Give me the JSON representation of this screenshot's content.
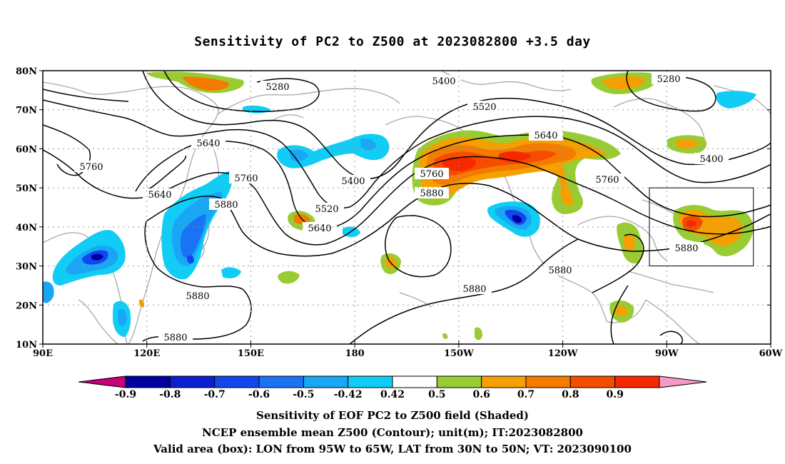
{
  "title": "Sensitivity of PC2 to Z500 at 2023082800 +3.5 day",
  "captions": [
    "Sensitivity of EOF PC2 to Z500 field (Shaded)",
    "NCEP ensemble mean Z500 (Contour); unit(m); IT:2023082800",
    "Valid area (box): LON from 95W to 65W, LAT from 30N to 50N; VT: 2023090100"
  ],
  "axes": {
    "x_ticks": [
      "90E",
      "120E",
      "150E",
      "180",
      "150W",
      "120W",
      "90W",
      "60W"
    ],
    "y_ticks": [
      "80N",
      "70N",
      "60N",
      "50N",
      "40N",
      "30N",
      "20N",
      "10N"
    ],
    "lon_range": [
      90,
      300
    ],
    "lat_range": [
      10,
      80
    ]
  },
  "colorbar": {
    "labels": [
      "-0.9",
      "-0.8",
      "-0.7",
      "-0.6",
      "-0.5",
      "-0.42",
      "0.42",
      "0.5",
      "0.6",
      "0.7",
      "0.8",
      "0.9"
    ],
    "colors": [
      "#c8007c",
      "#0000a0",
      "#0a1fd0",
      "#1246ee",
      "#1a72f5",
      "#19a6f5",
      "#11cdf5",
      "#ffffff",
      "#99cc33",
      "#f5a000",
      "#f57a00",
      "#f54d00",
      "#f52800",
      "#f59ac8"
    ]
  },
  "contour_labels": [
    "5280",
    "5400",
    "5520",
    "5640",
    "5760",
    "5880"
  ],
  "valid_box": {
    "lon": [
      -95,
      -65
    ],
    "lat": [
      30,
      50
    ]
  }
}
